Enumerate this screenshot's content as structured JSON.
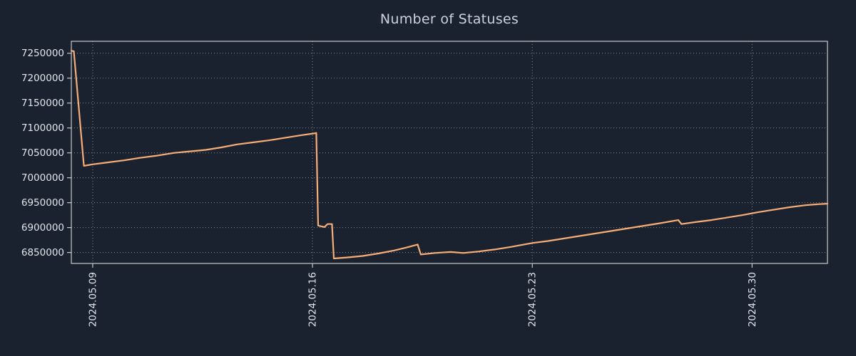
{
  "colors": {
    "background": "#1a2230",
    "line": "#f7ad76",
    "grid": "#ffffff",
    "axis": "#c8c8c8",
    "tick_text": "#e2e6ec",
    "title_text": "#ccd2dc"
  },
  "chart_data": {
    "type": "line",
    "title": "Number of Statuses",
    "xlabel": "",
    "ylabel": "",
    "grid": true,
    "legend": "none",
    "x_unit": "day of month, May 2024 (fractional days)",
    "xlim": [
      8.32,
      32.4
    ],
    "ylim": [
      6828000,
      7274000
    ],
    "xticks": [
      {
        "pos": 9,
        "label": "2024.05.09"
      },
      {
        "pos": 16,
        "label": "2024.05.16"
      },
      {
        "pos": 23,
        "label": "2024.05.23"
      },
      {
        "pos": 30,
        "label": "2024.05.30"
      }
    ],
    "yticks": [
      {
        "v": 6850000,
        "label": "6850000"
      },
      {
        "v": 6900000,
        "label": "6900000"
      },
      {
        "v": 6950000,
        "label": "6950000"
      },
      {
        "v": 7000000,
        "label": "7000000"
      },
      {
        "v": 7050000,
        "label": "7050000"
      },
      {
        "v": 7100000,
        "label": "7100000"
      },
      {
        "v": 7150000,
        "label": "7150000"
      },
      {
        "v": 7200000,
        "label": "7200000"
      },
      {
        "v": 7250000,
        "label": "7250000"
      }
    ],
    "series": [
      {
        "name": "statuses",
        "points": [
          [
            8.32,
            7255000
          ],
          [
            8.4,
            7254000
          ],
          [
            8.72,
            7024000
          ],
          [
            9.0,
            7027000
          ],
          [
            9.5,
            7031000
          ],
          [
            10.0,
            7035000
          ],
          [
            10.5,
            7040000
          ],
          [
            11.0,
            7044000
          ],
          [
            11.6,
            7050000
          ],
          [
            12.1,
            7053000
          ],
          [
            12.6,
            7056000
          ],
          [
            13.1,
            7061000
          ],
          [
            13.6,
            7067000
          ],
          [
            14.1,
            7071000
          ],
          [
            14.6,
            7075000
          ],
          [
            15.1,
            7080000
          ],
          [
            15.6,
            7085000
          ],
          [
            16.05,
            7089000
          ],
          [
            16.12,
            7090000
          ],
          [
            16.18,
            6904000
          ],
          [
            16.38,
            6901000
          ],
          [
            16.48,
            6907000
          ],
          [
            16.62,
            6907000
          ],
          [
            16.68,
            6838000
          ],
          [
            17.1,
            6840000
          ],
          [
            17.6,
            6843000
          ],
          [
            18.1,
            6848000
          ],
          [
            18.6,
            6854000
          ],
          [
            19.0,
            6860000
          ],
          [
            19.35,
            6866000
          ],
          [
            19.45,
            6846000
          ],
          [
            19.9,
            6849000
          ],
          [
            20.4,
            6851000
          ],
          [
            20.8,
            6849000
          ],
          [
            21.3,
            6852000
          ],
          [
            21.8,
            6856000
          ],
          [
            22.3,
            6861000
          ],
          [
            23.0,
            6869000
          ],
          [
            23.5,
            6873000
          ],
          [
            24.0,
            6878000
          ],
          [
            24.5,
            6883000
          ],
          [
            25.0,
            6888000
          ],
          [
            25.5,
            6893000
          ],
          [
            26.0,
            6898000
          ],
          [
            26.5,
            6903000
          ],
          [
            27.0,
            6908000
          ],
          [
            27.65,
            6915000
          ],
          [
            27.75,
            6907000
          ],
          [
            28.2,
            6911000
          ],
          [
            28.7,
            6915000
          ],
          [
            29.2,
            6920000
          ],
          [
            29.7,
            6925000
          ],
          [
            30.2,
            6931000
          ],
          [
            30.7,
            6936000
          ],
          [
            31.2,
            6941000
          ],
          [
            31.7,
            6945000
          ],
          [
            32.1,
            6947000
          ],
          [
            32.4,
            6948000
          ]
        ]
      }
    ]
  }
}
